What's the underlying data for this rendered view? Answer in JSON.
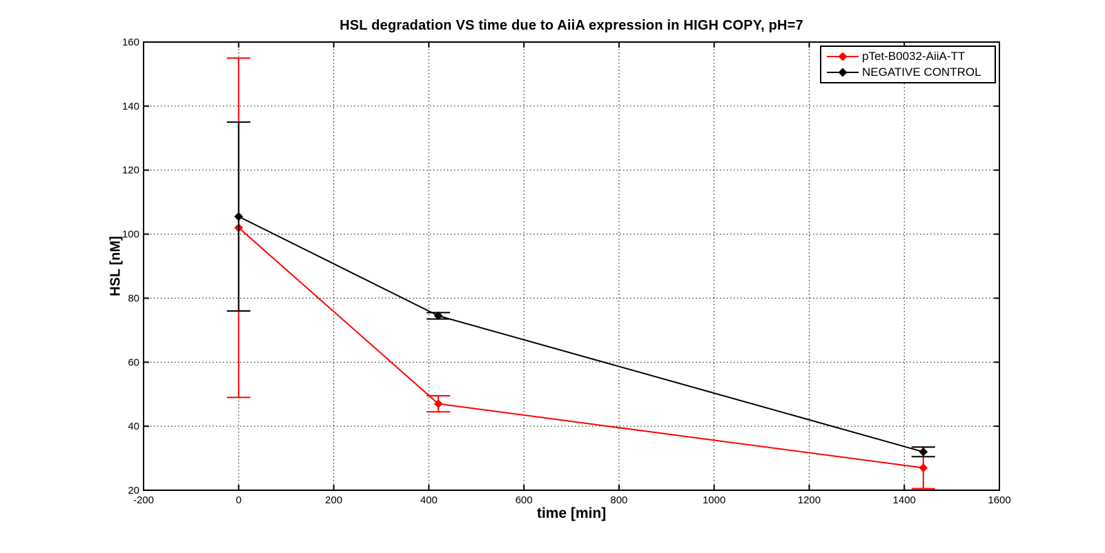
{
  "chart_data": {
    "type": "line",
    "title": "HSL degradation VS time due to AiiA expression in HIGH COPY, pH=7",
    "xlabel": "time [min]",
    "ylabel": "HSL [nM]",
    "xlim": [
      -200,
      1600
    ],
    "ylim": [
      20,
      160
    ],
    "xticks": [
      -200,
      0,
      200,
      400,
      600,
      800,
      1000,
      1200,
      1400,
      1600
    ],
    "yticks": [
      20,
      40,
      60,
      80,
      100,
      120,
      140,
      160
    ],
    "grid": "dotted",
    "legend_position": "top-right",
    "marker": "diamond",
    "x": [
      0,
      420,
      1440
    ],
    "series": [
      {
        "name": "pTet-B0032-AiiA-TT",
        "color": "#ff0000",
        "values": [
          102,
          47,
          27
        ],
        "errors": [
          53,
          2.5,
          6.5
        ]
      },
      {
        "name": "NEGATIVE CONTROL",
        "color": "#000000",
        "values": [
          105.5,
          74.5,
          32
        ],
        "errors": [
          29.5,
          1,
          1.5
        ]
      }
    ],
    "axis_color": "#000000",
    "grid_color": "#000000",
    "background_color": "#ffffff"
  }
}
